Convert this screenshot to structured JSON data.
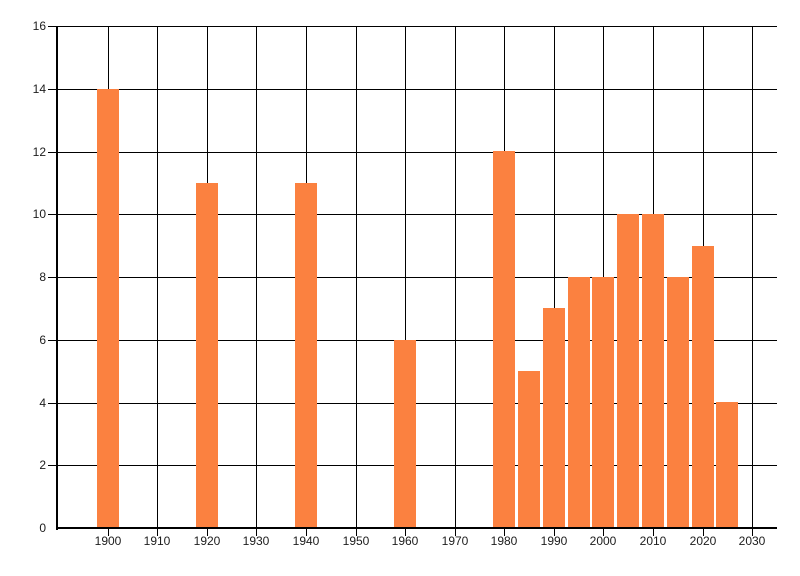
{
  "chart_data": {
    "type": "bar",
    "title": "",
    "xlabel": "",
    "ylabel": "",
    "x": [
      1900,
      1920,
      1940,
      1960,
      1980,
      1985,
      1990,
      1995,
      2000,
      2005,
      2010,
      2015,
      2020,
      2025
    ],
    "values": [
      14,
      11,
      11,
      6,
      12,
      5,
      7,
      8,
      8,
      10,
      10,
      8,
      9,
      4
    ],
    "xlim": [
      1890,
      2035
    ],
    "ylim": [
      0,
      16
    ],
    "x_ticks": [
      1900,
      1910,
      1920,
      1930,
      1940,
      1950,
      1960,
      1970,
      1980,
      1990,
      2000,
      2010,
      2020,
      2030
    ],
    "y_ticks": [
      0,
      2,
      4,
      6,
      8,
      10,
      12,
      14,
      16
    ],
    "grid": true,
    "legend": false,
    "bar_color": "#FB8140",
    "grid_color": "#000000",
    "axis_color": "#000000",
    "label_color": "#1c1c1c"
  }
}
